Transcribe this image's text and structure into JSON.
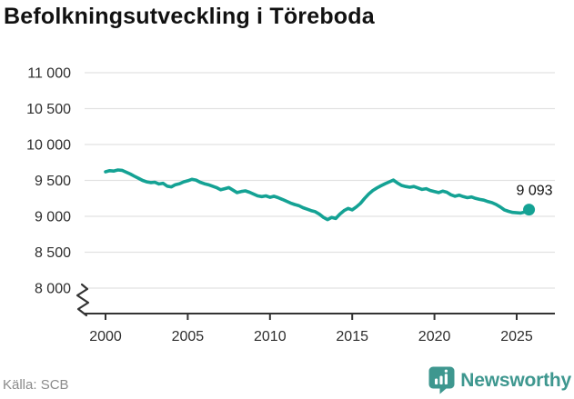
{
  "title": "Befolkningsutveckling i Töreboda",
  "source": "Källa: SCB",
  "brand": {
    "name": "Newsworthy",
    "color": "#3E978F",
    "icon": "bar-chart-badge-icon"
  },
  "colors": {
    "line": "#14A294",
    "grid": "#E2E2E2",
    "axis": "#333333",
    "tick_text": "#2e2e2e",
    "title_text": "#111111",
    "muted_text": "#8b8b8b"
  },
  "chart_data": {
    "type": "line",
    "title": "Befolkningsutveckling i Töreboda",
    "xlabel": "",
    "ylabel": "",
    "grid": true,
    "axis_break": true,
    "ylim_displayed": [
      8000,
      11000
    ],
    "y_ticks": [
      8000,
      8500,
      9000,
      9500,
      10000,
      10500,
      11000
    ],
    "y_tick_labels": [
      "8 000",
      "8 500",
      "9 000",
      "9 500",
      "10 000",
      "10 500",
      "11 000"
    ],
    "x_ticks": [
      2000,
      2005,
      2010,
      2015,
      2020,
      2025
    ],
    "x_tick_labels": [
      "2000",
      "2005",
      "2010",
      "2015",
      "2020",
      "2025"
    ],
    "end_label": "9 093",
    "last_value": 9093,
    "series": [
      {
        "x_start": 2000,
        "x_step": 0.25,
        "y": [
          9620,
          9635,
          9630,
          9645,
          9640,
          9615,
          9590,
          9560,
          9530,
          9500,
          9480,
          9470,
          9475,
          9450,
          9460,
          9420,
          9410,
          9440,
          9455,
          9480,
          9495,
          9515,
          9505,
          9475,
          9455,
          9440,
          9420,
          9400,
          9370,
          9385,
          9400,
          9365,
          9330,
          9345,
          9355,
          9335,
          9310,
          9285,
          9275,
          9285,
          9265,
          9280,
          9260,
          9235,
          9210,
          9185,
          9165,
          9150,
          9120,
          9100,
          9080,
          9065,
          9030,
          8985,
          8955,
          8985,
          8970,
          9030,
          9080,
          9110,
          9090,
          9130,
          9180,
          9250,
          9310,
          9360,
          9395,
          9425,
          9455,
          9480,
          9505,
          9465,
          9430,
          9415,
          9405,
          9415,
          9395,
          9375,
          9385,
          9360,
          9345,
          9330,
          9350,
          9335,
          9300,
          9280,
          9295,
          9275,
          9260,
          9270,
          9250,
          9235,
          9225,
          9205,
          9190,
          9165,
          9130,
          9090,
          9070,
          9055,
          9050,
          9045,
          9060,
          9093
        ]
      }
    ]
  }
}
